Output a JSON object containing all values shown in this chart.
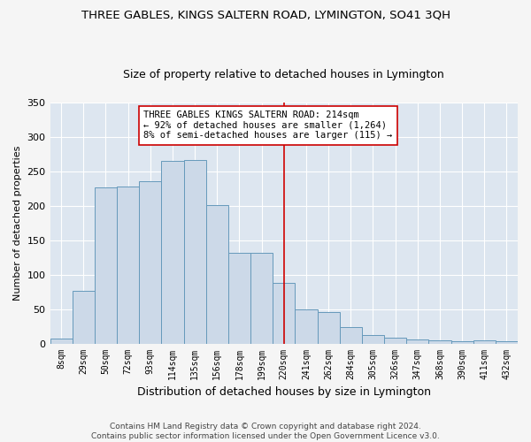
{
  "title": "THREE GABLES, KINGS SALTERN ROAD, LYMINGTON, SO41 3QH",
  "subtitle": "Size of property relative to detached houses in Lymington",
  "xlabel": "Distribution of detached houses by size in Lymington",
  "ylabel": "Number of detached properties",
  "bar_color": "#ccd9e8",
  "bar_edge_color": "#6699bb",
  "background_color": "#dde6f0",
  "grid_color": "#ffffff",
  "bin_labels": [
    "8sqm",
    "29sqm",
    "50sqm",
    "72sqm",
    "93sqm",
    "114sqm",
    "135sqm",
    "156sqm",
    "178sqm",
    "199sqm",
    "220sqm",
    "241sqm",
    "262sqm",
    "284sqm",
    "305sqm",
    "326sqm",
    "347sqm",
    "368sqm",
    "390sqm",
    "411sqm",
    "432sqm"
  ],
  "bar_heights": [
    7,
    77,
    226,
    228,
    235,
    265,
    266,
    201,
    132,
    131,
    88,
    50,
    45,
    24,
    12,
    8,
    6,
    5,
    3,
    5,
    3
  ],
  "vline_x": 10.0,
  "vline_color": "#cc0000",
  "annotation_text": "THREE GABLES KINGS SALTERN ROAD: 214sqm\n← 92% of detached houses are smaller (1,264)\n8% of semi-detached houses are larger (115) →",
  "annotation_box_color": "#ffffff",
  "annotation_box_edge_color": "#cc0000",
  "ylim": [
    0,
    350
  ],
  "yticks": [
    0,
    50,
    100,
    150,
    200,
    250,
    300,
    350
  ],
  "footer_text": "Contains HM Land Registry data © Crown copyright and database right 2024.\nContains public sector information licensed under the Open Government Licence v3.0.",
  "title_fontsize": 9.5,
  "subtitle_fontsize": 9,
  "ylabel_fontsize": 8,
  "xlabel_fontsize": 9,
  "annotation_fontsize": 7.5,
  "tick_fontsize": 7,
  "ytick_fontsize": 8,
  "footer_fontsize": 6.5,
  "fig_facecolor": "#f5f5f5"
}
